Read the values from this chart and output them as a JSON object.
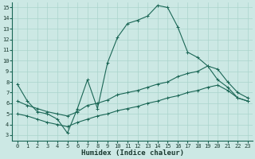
{
  "xlabel": "Humidex (Indice chaleur)",
  "bg_color": "#cce8e4",
  "grid_color": "#aad4cc",
  "line_color": "#1a6655",
  "xlim": [
    -0.5,
    23.5
  ],
  "ylim": [
    2.5,
    15.5
  ],
  "xticks": [
    0,
    1,
    2,
    3,
    4,
    5,
    6,
    7,
    8,
    9,
    10,
    11,
    12,
    13,
    14,
    15,
    16,
    17,
    18,
    19,
    20,
    21,
    22,
    23
  ],
  "yticks": [
    3,
    4,
    5,
    6,
    7,
    8,
    9,
    10,
    11,
    12,
    13,
    14,
    15
  ],
  "line1_x": [
    0,
    1,
    2,
    3,
    4,
    5,
    6,
    7,
    8,
    9,
    10,
    11,
    12,
    13,
    14,
    15,
    16,
    17,
    18,
    19,
    20,
    21,
    22,
    23
  ],
  "line1_y": [
    7.8,
    6.2,
    5.2,
    5.0,
    4.5,
    3.2,
    5.5,
    8.2,
    5.5,
    9.8,
    12.2,
    13.5,
    13.8,
    14.2,
    15.2,
    15.0,
    13.2,
    10.8,
    10.3,
    9.5,
    8.2,
    7.5,
    6.5,
    6.2
  ],
  "line2_x": [
    0,
    1,
    2,
    3,
    4,
    5,
    6,
    7,
    8,
    9,
    10,
    11,
    12,
    13,
    14,
    15,
    16,
    17,
    18,
    19,
    20,
    21,
    22,
    23
  ],
  "line2_y": [
    6.2,
    5.8,
    5.5,
    5.2,
    5.0,
    4.8,
    5.2,
    5.8,
    6.0,
    6.3,
    6.8,
    7.0,
    7.2,
    7.5,
    7.8,
    8.0,
    8.5,
    8.8,
    9.0,
    9.5,
    9.2,
    8.0,
    7.0,
    6.5
  ],
  "line3_x": [
    0,
    1,
    2,
    3,
    4,
    5,
    6,
    7,
    8,
    9,
    10,
    11,
    12,
    13,
    14,
    15,
    16,
    17,
    18,
    19,
    20,
    21,
    22,
    23
  ],
  "line3_y": [
    5.0,
    4.8,
    4.5,
    4.2,
    4.0,
    3.8,
    4.2,
    4.5,
    4.8,
    5.0,
    5.3,
    5.5,
    5.7,
    6.0,
    6.2,
    6.5,
    6.7,
    7.0,
    7.2,
    7.5,
    7.7,
    7.2,
    6.5,
    6.2
  ]
}
